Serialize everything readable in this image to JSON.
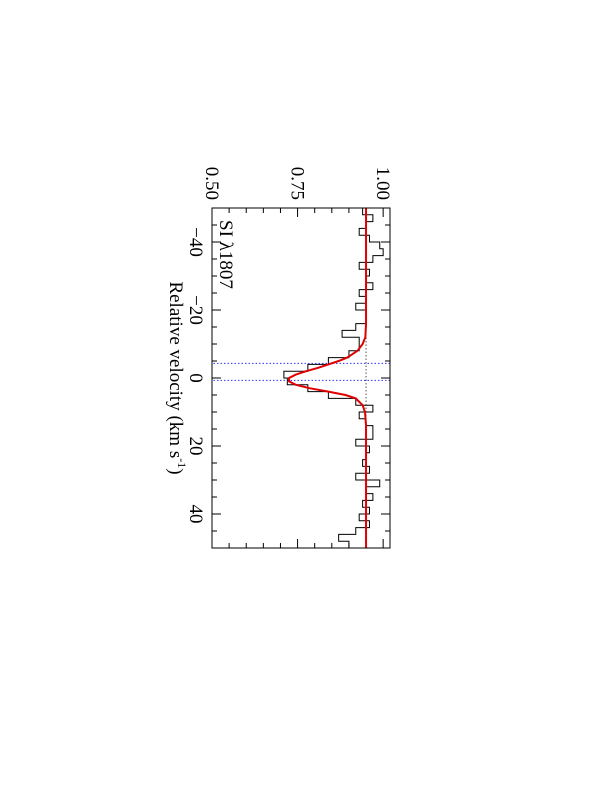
{
  "chart_data": {
    "type": "line",
    "orientation": "rotated-90-clockwise",
    "annotation": "SI λ1807",
    "xlabel": "Relative velocity (km s",
    "xlabel_sup": "-1",
    "xlabel_close": ")",
    "ylabel": "",
    "xlim": [
      -50,
      50
    ],
    "ylim": [
      0.5,
      1.02
    ],
    "x_ticks": [
      -40,
      -20,
      0,
      20,
      40
    ],
    "x_tick_labels": [
      "−40",
      "−20",
      "0",
      "20",
      "40"
    ],
    "y_ticks": [
      0.5,
      0.75,
      1.0
    ],
    "y_tick_labels": [
      "0.50",
      "0.75",
      "1.00"
    ],
    "x_minor_step": 5,
    "y_minor_step": 0.05,
    "continuum": 0.95,
    "component_lines": [
      -4.3,
      0.7
    ],
    "colors": {
      "data": "#000000",
      "fit": "#e00000",
      "component": "#3333ff",
      "continuum": "#555555"
    },
    "series": [
      {
        "style": "histogram",
        "x": [
          -50,
          -48,
          -46,
          -44,
          -42,
          -40,
          -38,
          -36,
          -34,
          -32,
          -30,
          -28,
          -26,
          -24,
          -22,
          -20,
          -18,
          -16,
          -14,
          -12,
          -10,
          -8,
          -6,
          -4,
          -2,
          0,
          2,
          4,
          6,
          8,
          10,
          12,
          14,
          16,
          18,
          20,
          22,
          24,
          26,
          28,
          30,
          32,
          34,
          36,
          38,
          40,
          42,
          44,
          46,
          48,
          50
        ],
        "values": [
          0.94,
          0.97,
          0.95,
          0.93,
          0.96,
          0.99,
          1.0,
          0.97,
          0.93,
          0.96,
          0.95,
          0.97,
          0.93,
          0.95,
          0.92,
          0.95,
          0.95,
          0.92,
          0.88,
          0.93,
          0.93,
          0.9,
          0.84,
          0.78,
          0.71,
          0.72,
          0.78,
          0.84,
          0.92,
          0.97,
          0.93,
          0.95,
          0.97,
          0.97,
          0.92,
          0.96,
          0.95,
          0.94,
          0.96,
          0.92,
          0.99,
          0.95,
          0.97,
          0.94,
          0.96,
          0.93,
          0.96,
          0.92,
          0.87,
          0.9,
          0.93
        ]
      },
      {
        "style": "line",
        "x": [
          -50,
          -30,
          -16,
          -12,
          -10,
          -8,
          -6,
          -5,
          -4,
          -3,
          -2,
          -1,
          0,
          1,
          2,
          3,
          4,
          5,
          6,
          8,
          10,
          14,
          30,
          50
        ],
        "values": [
          0.95,
          0.95,
          0.95,
          0.948,
          0.94,
          0.925,
          0.895,
          0.87,
          0.84,
          0.81,
          0.775,
          0.745,
          0.725,
          0.725,
          0.745,
          0.785,
          0.84,
          0.89,
          0.92,
          0.94,
          0.947,
          0.95,
          0.95,
          0.95
        ]
      }
    ]
  }
}
